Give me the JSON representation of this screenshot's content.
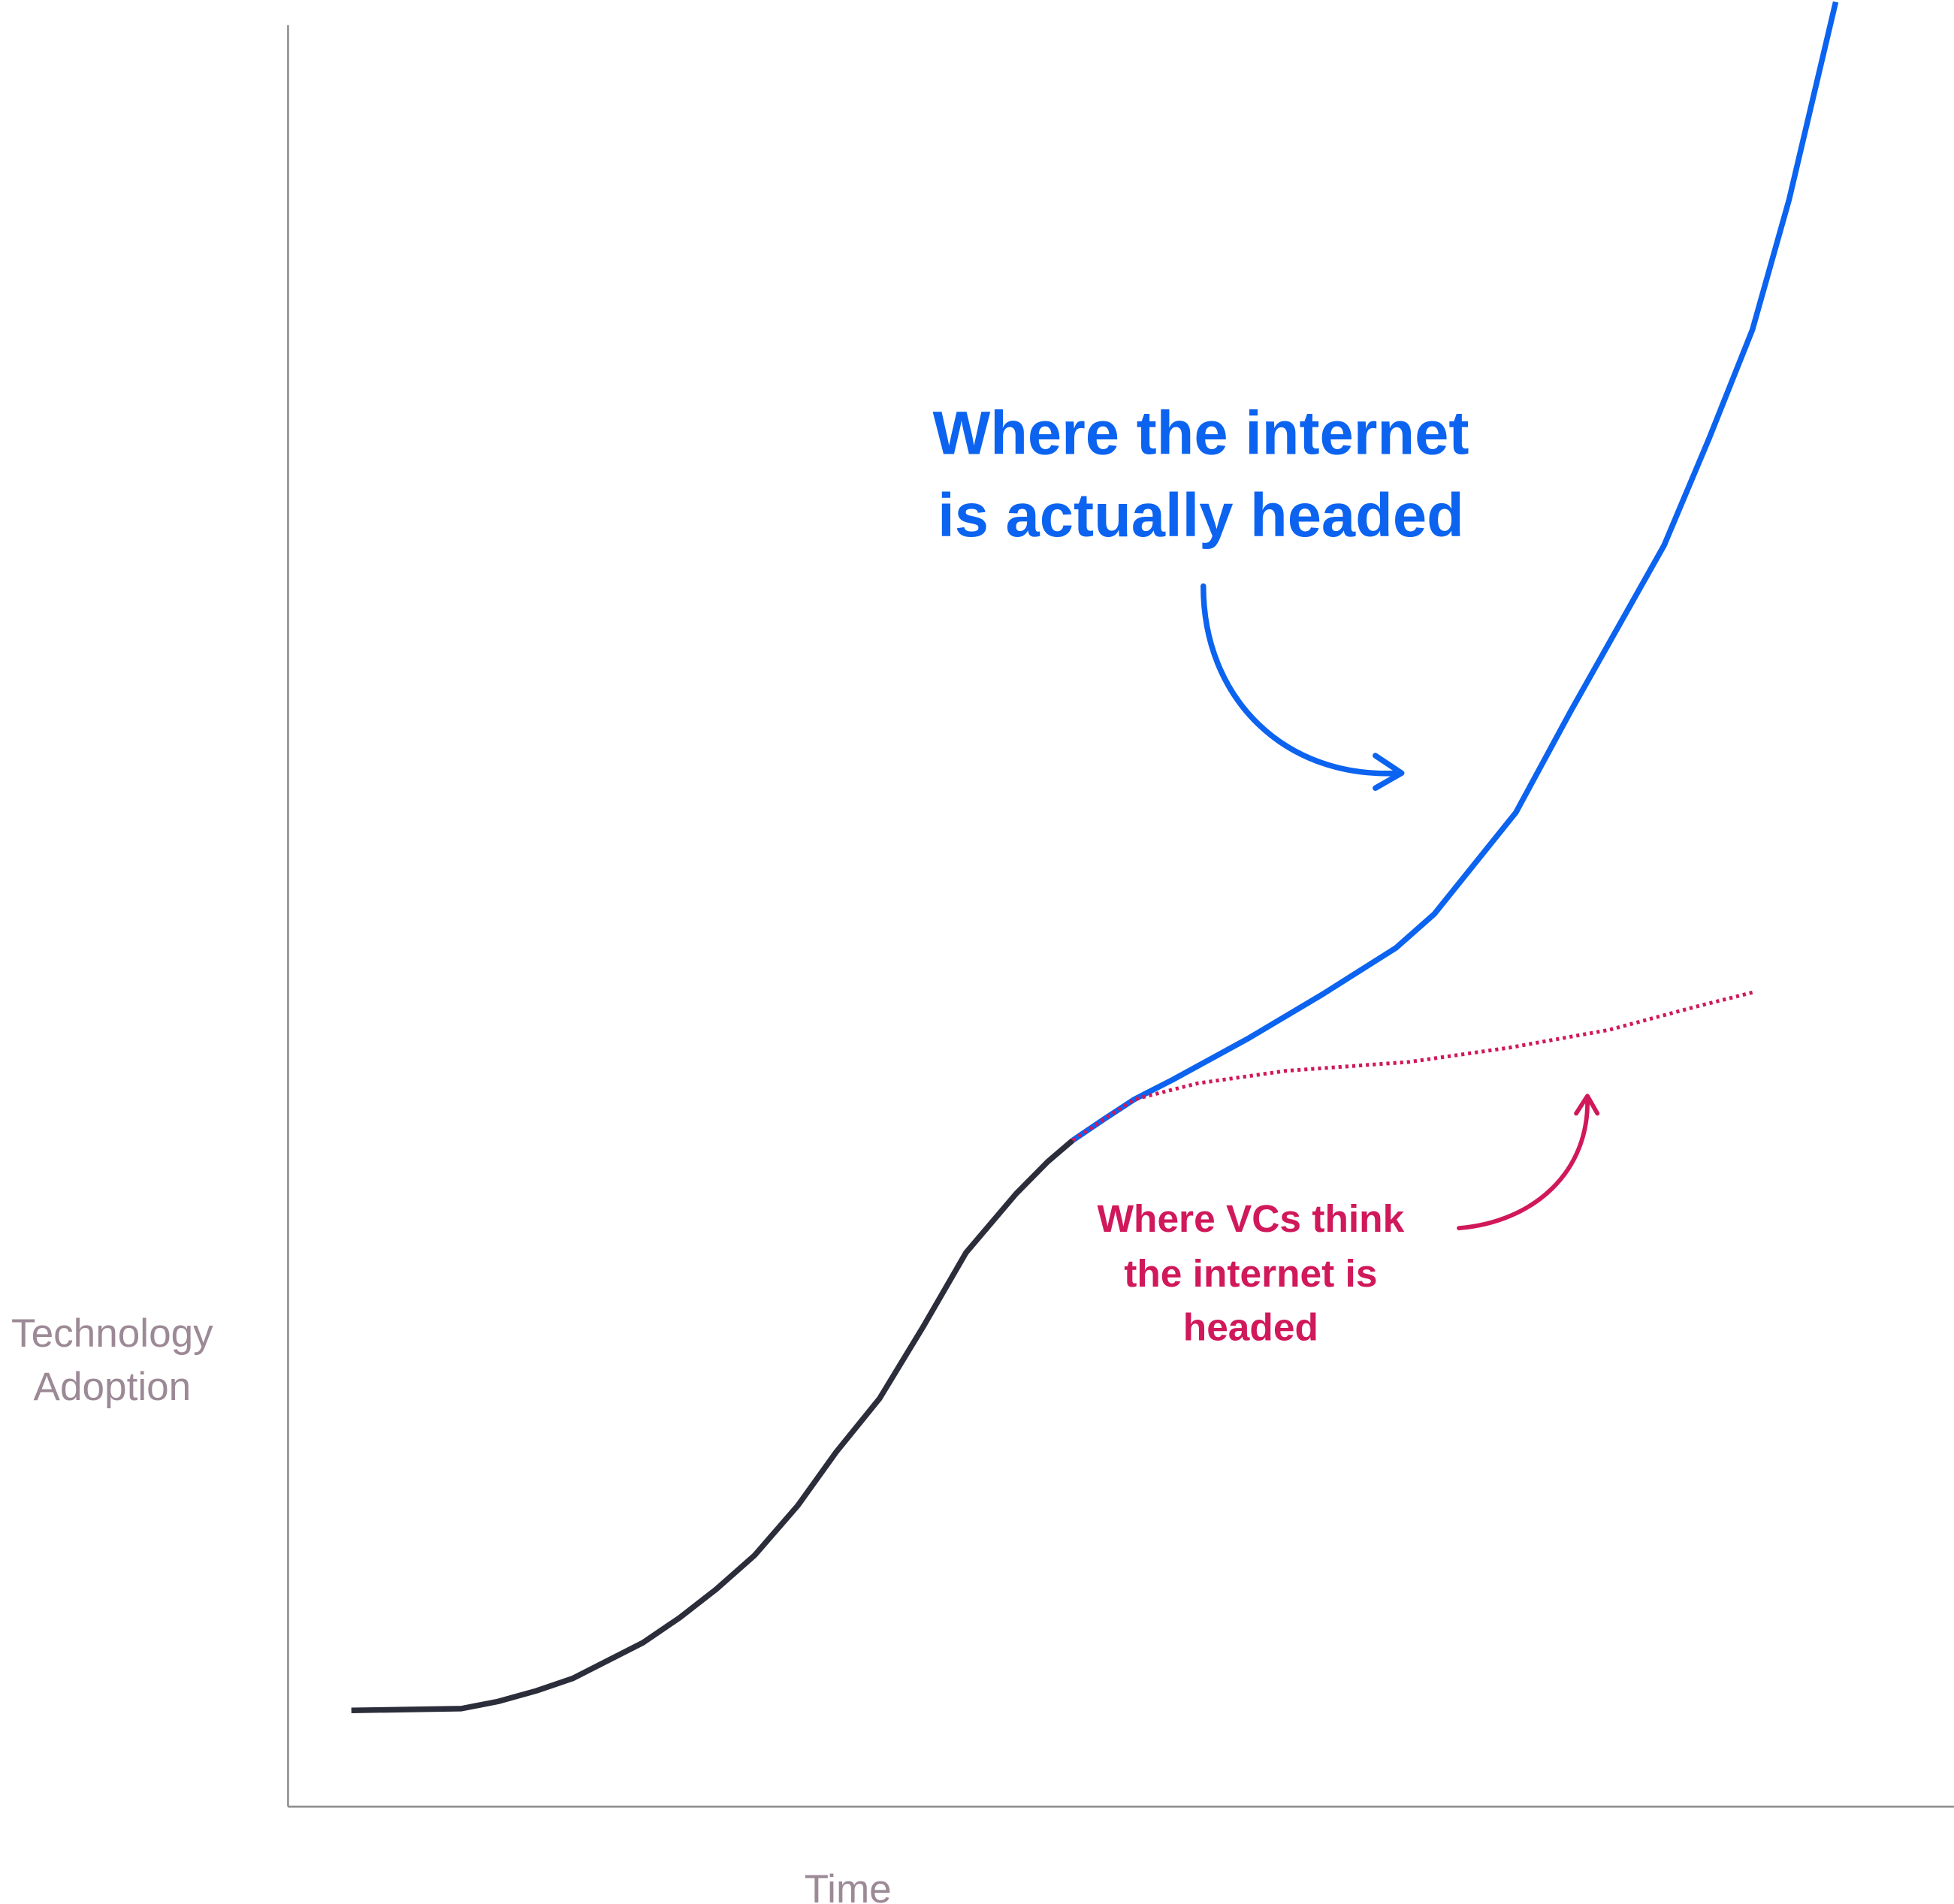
{
  "chart_data": {
    "type": "line",
    "x_label": "Time",
    "y_label": [
      "Technology",
      "Adoption"
    ],
    "xlim": [
      0,
      100
    ],
    "ylim": [
      0,
      100
    ],
    "series": [
      {
        "color": "#2b2d3a",
        "style": "solid",
        "x": [
          3.8,
          10.4,
          12.6,
          14.9,
          17.1,
          21.3,
          23.5,
          25.7,
          28.0,
          30.6,
          32.9,
          35.5,
          38.1,
          40.7,
          43.7,
          45.6,
          47.1
        ],
        "values": [
          5.4,
          5.5,
          5.9,
          6.5,
          7.2,
          9.2,
          10.6,
          12.2,
          14.1,
          16.9,
          19.9,
          22.9,
          26.9,
          31.1,
          34.4,
          36.2,
          37.4
        ]
      },
      {
        "color": "#0b63f0",
        "style": "solid",
        "x": [
          47.1,
          49.0,
          50.8,
          53.1,
          57.6,
          62.1,
          66.5,
          68.8,
          73.7,
          77.0,
          82.6,
          85.3,
          87.9,
          90.1,
          92.9
        ],
        "values": [
          37.4,
          38.6,
          39.7,
          40.8,
          43.1,
          45.6,
          48.2,
          50.1,
          55.8,
          61.5,
          70.8,
          76.8,
          82.9,
          90.2,
          101.3
        ]
      },
      {
        "color": "#d0185a",
        "style": "dotted",
        "x": [
          47.1,
          49.0,
          50.8,
          54.6,
          59.9,
          67.3,
          73.3,
          79.3,
          84.5,
          87.9
        ],
        "values": [
          37.4,
          38.6,
          39.7,
          40.6,
          41.3,
          41.8,
          42.6,
          43.6,
          44.9,
          45.7
        ]
      }
    ],
    "annotations": [
      {
        "lines": [
          "Where the internet",
          "is actually headed"
        ],
        "color": "#0b63f0"
      },
      {
        "lines": [
          "Where VCs think",
          "the internet is",
          "headed"
        ],
        "color": "#d0185a"
      }
    ]
  }
}
